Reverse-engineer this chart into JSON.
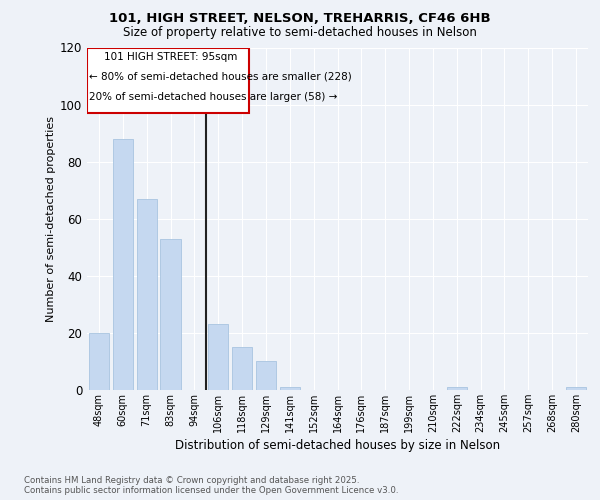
{
  "title1": "101, HIGH STREET, NELSON, TREHARRIS, CF46 6HB",
  "title2": "Size of property relative to semi-detached houses in Nelson",
  "xlabel": "Distribution of semi-detached houses by size in Nelson",
  "ylabel": "Number of semi-detached properties",
  "categories": [
    "48sqm",
    "60sqm",
    "71sqm",
    "83sqm",
    "94sqm",
    "106sqm",
    "118sqm",
    "129sqm",
    "141sqm",
    "152sqm",
    "164sqm",
    "176sqm",
    "187sqm",
    "199sqm",
    "210sqm",
    "222sqm",
    "234sqm",
    "245sqm",
    "257sqm",
    "268sqm",
    "280sqm"
  ],
  "values": [
    20,
    88,
    67,
    53,
    0,
    23,
    15,
    10,
    1,
    0,
    0,
    0,
    0,
    0,
    0,
    1,
    0,
    0,
    0,
    0,
    1
  ],
  "bar_color_normal": "#c5d8f0",
  "bar_color_edge": "#a8c4e0",
  "vline_color": "#222222",
  "annotation_title": "101 HIGH STREET: 95sqm",
  "annotation_line1": "← 80% of semi-detached houses are smaller (228)",
  "annotation_line2": "20% of semi-detached houses are larger (58) →",
  "annotation_box_color": "#cc0000",
  "ylim": [
    0,
    120
  ],
  "yticks": [
    0,
    20,
    40,
    60,
    80,
    100,
    120
  ],
  "footer1": "Contains HM Land Registry data © Crown copyright and database right 2025.",
  "footer2": "Contains public sector information licensed under the Open Government Licence v3.0.",
  "bg_color": "#eef2f8",
  "plot_bg_color": "#eef2f8"
}
